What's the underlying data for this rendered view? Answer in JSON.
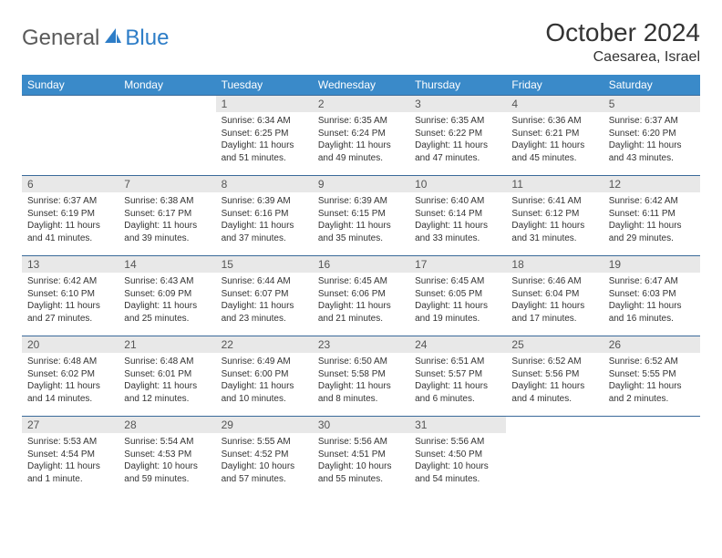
{
  "logo": {
    "general": "General",
    "blue": "Blue"
  },
  "title": "October 2024",
  "location": "Caesarea, Israel",
  "styling": {
    "header_bg": "#3a8ac9",
    "header_fg": "#ffffff",
    "daynum_bg": "#e8e8e8",
    "daynum_fg": "#555555",
    "body_fg": "#333333",
    "border_color": "#3a6a9a",
    "page_bg": "#ffffff",
    "title_fontsize": 28,
    "header_fontsize": 12,
    "daynum_fontsize": 12,
    "body_fontsize": 10,
    "logo_color_gray": "#5a5a5a",
    "logo_color_blue": "#2d7dc7",
    "logo_icon_color": "#2d7dc7"
  },
  "weekdays": [
    "Sunday",
    "Monday",
    "Tuesday",
    "Wednesday",
    "Thursday",
    "Friday",
    "Saturday"
  ],
  "weeks": [
    [
      null,
      null,
      {
        "n": "1",
        "sr": "Sunrise: 6:34 AM",
        "ss": "Sunset: 6:25 PM",
        "dl": "Daylight: 11 hours and 51 minutes."
      },
      {
        "n": "2",
        "sr": "Sunrise: 6:35 AM",
        "ss": "Sunset: 6:24 PM",
        "dl": "Daylight: 11 hours and 49 minutes."
      },
      {
        "n": "3",
        "sr": "Sunrise: 6:35 AM",
        "ss": "Sunset: 6:22 PM",
        "dl": "Daylight: 11 hours and 47 minutes."
      },
      {
        "n": "4",
        "sr": "Sunrise: 6:36 AM",
        "ss": "Sunset: 6:21 PM",
        "dl": "Daylight: 11 hours and 45 minutes."
      },
      {
        "n": "5",
        "sr": "Sunrise: 6:37 AM",
        "ss": "Sunset: 6:20 PM",
        "dl": "Daylight: 11 hours and 43 minutes."
      }
    ],
    [
      {
        "n": "6",
        "sr": "Sunrise: 6:37 AM",
        "ss": "Sunset: 6:19 PM",
        "dl": "Daylight: 11 hours and 41 minutes."
      },
      {
        "n": "7",
        "sr": "Sunrise: 6:38 AM",
        "ss": "Sunset: 6:17 PM",
        "dl": "Daylight: 11 hours and 39 minutes."
      },
      {
        "n": "8",
        "sr": "Sunrise: 6:39 AM",
        "ss": "Sunset: 6:16 PM",
        "dl": "Daylight: 11 hours and 37 minutes."
      },
      {
        "n": "9",
        "sr": "Sunrise: 6:39 AM",
        "ss": "Sunset: 6:15 PM",
        "dl": "Daylight: 11 hours and 35 minutes."
      },
      {
        "n": "10",
        "sr": "Sunrise: 6:40 AM",
        "ss": "Sunset: 6:14 PM",
        "dl": "Daylight: 11 hours and 33 minutes."
      },
      {
        "n": "11",
        "sr": "Sunrise: 6:41 AM",
        "ss": "Sunset: 6:12 PM",
        "dl": "Daylight: 11 hours and 31 minutes."
      },
      {
        "n": "12",
        "sr": "Sunrise: 6:42 AM",
        "ss": "Sunset: 6:11 PM",
        "dl": "Daylight: 11 hours and 29 minutes."
      }
    ],
    [
      {
        "n": "13",
        "sr": "Sunrise: 6:42 AM",
        "ss": "Sunset: 6:10 PM",
        "dl": "Daylight: 11 hours and 27 minutes."
      },
      {
        "n": "14",
        "sr": "Sunrise: 6:43 AM",
        "ss": "Sunset: 6:09 PM",
        "dl": "Daylight: 11 hours and 25 minutes."
      },
      {
        "n": "15",
        "sr": "Sunrise: 6:44 AM",
        "ss": "Sunset: 6:07 PM",
        "dl": "Daylight: 11 hours and 23 minutes."
      },
      {
        "n": "16",
        "sr": "Sunrise: 6:45 AM",
        "ss": "Sunset: 6:06 PM",
        "dl": "Daylight: 11 hours and 21 minutes."
      },
      {
        "n": "17",
        "sr": "Sunrise: 6:45 AM",
        "ss": "Sunset: 6:05 PM",
        "dl": "Daylight: 11 hours and 19 minutes."
      },
      {
        "n": "18",
        "sr": "Sunrise: 6:46 AM",
        "ss": "Sunset: 6:04 PM",
        "dl": "Daylight: 11 hours and 17 minutes."
      },
      {
        "n": "19",
        "sr": "Sunrise: 6:47 AM",
        "ss": "Sunset: 6:03 PM",
        "dl": "Daylight: 11 hours and 16 minutes."
      }
    ],
    [
      {
        "n": "20",
        "sr": "Sunrise: 6:48 AM",
        "ss": "Sunset: 6:02 PM",
        "dl": "Daylight: 11 hours and 14 minutes."
      },
      {
        "n": "21",
        "sr": "Sunrise: 6:48 AM",
        "ss": "Sunset: 6:01 PM",
        "dl": "Daylight: 11 hours and 12 minutes."
      },
      {
        "n": "22",
        "sr": "Sunrise: 6:49 AM",
        "ss": "Sunset: 6:00 PM",
        "dl": "Daylight: 11 hours and 10 minutes."
      },
      {
        "n": "23",
        "sr": "Sunrise: 6:50 AM",
        "ss": "Sunset: 5:58 PM",
        "dl": "Daylight: 11 hours and 8 minutes."
      },
      {
        "n": "24",
        "sr": "Sunrise: 6:51 AM",
        "ss": "Sunset: 5:57 PM",
        "dl": "Daylight: 11 hours and 6 minutes."
      },
      {
        "n": "25",
        "sr": "Sunrise: 6:52 AM",
        "ss": "Sunset: 5:56 PM",
        "dl": "Daylight: 11 hours and 4 minutes."
      },
      {
        "n": "26",
        "sr": "Sunrise: 6:52 AM",
        "ss": "Sunset: 5:55 PM",
        "dl": "Daylight: 11 hours and 2 minutes."
      }
    ],
    [
      {
        "n": "27",
        "sr": "Sunrise: 5:53 AM",
        "ss": "Sunset: 4:54 PM",
        "dl": "Daylight: 11 hours and 1 minute."
      },
      {
        "n": "28",
        "sr": "Sunrise: 5:54 AM",
        "ss": "Sunset: 4:53 PM",
        "dl": "Daylight: 10 hours and 59 minutes."
      },
      {
        "n": "29",
        "sr": "Sunrise: 5:55 AM",
        "ss": "Sunset: 4:52 PM",
        "dl": "Daylight: 10 hours and 57 minutes."
      },
      {
        "n": "30",
        "sr": "Sunrise: 5:56 AM",
        "ss": "Sunset: 4:51 PM",
        "dl": "Daylight: 10 hours and 55 minutes."
      },
      {
        "n": "31",
        "sr": "Sunrise: 5:56 AM",
        "ss": "Sunset: 4:50 PM",
        "dl": "Daylight: 10 hours and 54 minutes."
      },
      null,
      null
    ]
  ]
}
